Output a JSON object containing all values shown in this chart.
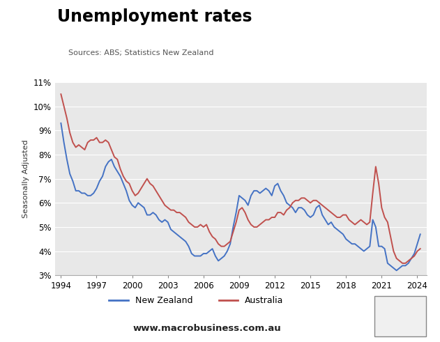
{
  "title": "Unemployment rates",
  "subtitle": "Sources: ABS; Statistics New Zealand",
  "ylabel": "Seasonally Adjusted",
  "footer": "www.macrobusiness.com.au",
  "bg_color": "#e8e8e8",
  "nz_color": "#4472c4",
  "au_color": "#c0504d",
  "ylim": [
    3,
    11
  ],
  "yticks": [
    3,
    4,
    5,
    6,
    7,
    8,
    9,
    10,
    11
  ],
  "xticks": [
    1994,
    1997,
    2000,
    2003,
    2006,
    2009,
    2012,
    2015,
    2018,
    2021,
    2024
  ],
  "xlim": [
    1993.5,
    2024.8
  ],
  "nz_x": [
    1994.0,
    1994.25,
    1994.5,
    1994.75,
    1995.0,
    1995.25,
    1995.5,
    1995.75,
    1996.0,
    1996.25,
    1996.5,
    1996.75,
    1997.0,
    1997.25,
    1997.5,
    1997.75,
    1998.0,
    1998.25,
    1998.5,
    1998.75,
    1999.0,
    1999.25,
    1999.5,
    1999.75,
    2000.0,
    2000.25,
    2000.5,
    2000.75,
    2001.0,
    2001.25,
    2001.5,
    2001.75,
    2002.0,
    2002.25,
    2002.5,
    2002.75,
    2003.0,
    2003.25,
    2003.5,
    2003.75,
    2004.0,
    2004.25,
    2004.5,
    2004.75,
    2005.0,
    2005.25,
    2005.5,
    2005.75,
    2006.0,
    2006.25,
    2006.5,
    2006.75,
    2007.0,
    2007.25,
    2007.5,
    2007.75,
    2008.0,
    2008.25,
    2008.5,
    2008.75,
    2009.0,
    2009.25,
    2009.5,
    2009.75,
    2010.0,
    2010.25,
    2010.5,
    2010.75,
    2011.0,
    2011.25,
    2011.5,
    2011.75,
    2012.0,
    2012.25,
    2012.5,
    2012.75,
    2013.0,
    2013.25,
    2013.5,
    2013.75,
    2014.0,
    2014.25,
    2014.5,
    2014.75,
    2015.0,
    2015.25,
    2015.5,
    2015.75,
    2016.0,
    2016.25,
    2016.5,
    2016.75,
    2017.0,
    2017.25,
    2017.5,
    2017.75,
    2018.0,
    2018.25,
    2018.5,
    2018.75,
    2019.0,
    2019.25,
    2019.5,
    2019.75,
    2020.0,
    2020.25,
    2020.5,
    2020.75,
    2021.0,
    2021.25,
    2021.5,
    2021.75,
    2022.0,
    2022.25,
    2022.5,
    2022.75,
    2023.0,
    2023.25,
    2023.5,
    2023.75,
    2024.0,
    2024.25
  ],
  "nz_y": [
    9.3,
    8.5,
    7.8,
    7.2,
    6.9,
    6.5,
    6.5,
    6.4,
    6.4,
    6.3,
    6.3,
    6.4,
    6.6,
    6.9,
    7.1,
    7.5,
    7.7,
    7.8,
    7.5,
    7.3,
    7.1,
    6.8,
    6.5,
    6.1,
    5.9,
    5.8,
    6.0,
    5.9,
    5.8,
    5.5,
    5.5,
    5.6,
    5.5,
    5.3,
    5.2,
    5.3,
    5.2,
    4.9,
    4.8,
    4.7,
    4.6,
    4.5,
    4.4,
    4.2,
    3.9,
    3.8,
    3.8,
    3.8,
    3.9,
    3.9,
    4.0,
    4.1,
    3.8,
    3.6,
    3.7,
    3.8,
    4.0,
    4.3,
    5.0,
    5.6,
    6.3,
    6.2,
    6.1,
    5.9,
    6.3,
    6.5,
    6.5,
    6.4,
    6.5,
    6.6,
    6.5,
    6.3,
    6.7,
    6.8,
    6.5,
    6.3,
    6.0,
    5.9,
    5.8,
    5.6,
    5.8,
    5.8,
    5.7,
    5.5,
    5.4,
    5.5,
    5.8,
    5.9,
    5.5,
    5.3,
    5.1,
    5.2,
    5.0,
    4.9,
    4.8,
    4.7,
    4.5,
    4.4,
    4.3,
    4.3,
    4.2,
    4.1,
    4.0,
    4.1,
    4.2,
    5.3,
    5.0,
    4.2,
    4.2,
    4.1,
    3.5,
    3.4,
    3.3,
    3.2,
    3.3,
    3.4,
    3.4,
    3.5,
    3.7,
    3.9,
    4.3,
    4.7
  ],
  "au_x": [
    1994.0,
    1994.25,
    1994.5,
    1994.75,
    1995.0,
    1995.25,
    1995.5,
    1995.75,
    1996.0,
    1996.25,
    1996.5,
    1996.75,
    1997.0,
    1997.25,
    1997.5,
    1997.75,
    1998.0,
    1998.25,
    1998.5,
    1998.75,
    1999.0,
    1999.25,
    1999.5,
    1999.75,
    2000.0,
    2000.25,
    2000.5,
    2000.75,
    2001.0,
    2001.25,
    2001.5,
    2001.75,
    2002.0,
    2002.25,
    2002.5,
    2002.75,
    2003.0,
    2003.25,
    2003.5,
    2003.75,
    2004.0,
    2004.25,
    2004.5,
    2004.75,
    2005.0,
    2005.25,
    2005.5,
    2005.75,
    2006.0,
    2006.25,
    2006.5,
    2006.75,
    2007.0,
    2007.25,
    2007.5,
    2007.75,
    2008.0,
    2008.25,
    2008.5,
    2008.75,
    2009.0,
    2009.25,
    2009.5,
    2009.75,
    2010.0,
    2010.25,
    2010.5,
    2010.75,
    2011.0,
    2011.25,
    2011.5,
    2011.75,
    2012.0,
    2012.25,
    2012.5,
    2012.75,
    2013.0,
    2013.25,
    2013.5,
    2013.75,
    2014.0,
    2014.25,
    2014.5,
    2014.75,
    2015.0,
    2015.25,
    2015.5,
    2015.75,
    2016.0,
    2016.25,
    2016.5,
    2016.75,
    2017.0,
    2017.25,
    2017.5,
    2017.75,
    2018.0,
    2018.25,
    2018.5,
    2018.75,
    2019.0,
    2019.25,
    2019.5,
    2019.75,
    2020.0,
    2020.25,
    2020.5,
    2020.75,
    2021.0,
    2021.25,
    2021.5,
    2021.75,
    2022.0,
    2022.25,
    2022.5,
    2022.75,
    2023.0,
    2023.25,
    2023.5,
    2023.75,
    2024.0,
    2024.25
  ],
  "au_y": [
    10.5,
    10.0,
    9.5,
    8.9,
    8.5,
    8.3,
    8.4,
    8.3,
    8.2,
    8.5,
    8.6,
    8.6,
    8.7,
    8.5,
    8.5,
    8.6,
    8.5,
    8.2,
    7.9,
    7.8,
    7.4,
    7.1,
    6.9,
    6.8,
    6.5,
    6.3,
    6.4,
    6.6,
    6.8,
    7.0,
    6.8,
    6.7,
    6.5,
    6.3,
    6.1,
    5.9,
    5.8,
    5.7,
    5.7,
    5.6,
    5.6,
    5.5,
    5.4,
    5.2,
    5.1,
    5.0,
    5.0,
    5.1,
    5.0,
    5.1,
    4.8,
    4.6,
    4.5,
    4.3,
    4.2,
    4.2,
    4.3,
    4.4,
    4.8,
    5.2,
    5.7,
    5.8,
    5.6,
    5.3,
    5.1,
    5.0,
    5.0,
    5.1,
    5.2,
    5.3,
    5.3,
    5.4,
    5.4,
    5.6,
    5.6,
    5.5,
    5.7,
    5.8,
    6.0,
    6.1,
    6.1,
    6.2,
    6.2,
    6.1,
    6.0,
    6.1,
    6.1,
    6.0,
    5.9,
    5.8,
    5.7,
    5.6,
    5.5,
    5.4,
    5.4,
    5.5,
    5.5,
    5.3,
    5.2,
    5.1,
    5.2,
    5.3,
    5.2,
    5.1,
    5.2,
    6.4,
    7.5,
    6.8,
    5.8,
    5.4,
    5.2,
    4.6,
    4.0,
    3.7,
    3.6,
    3.5,
    3.5,
    3.6,
    3.7,
    3.8,
    4.0,
    4.1
  ]
}
